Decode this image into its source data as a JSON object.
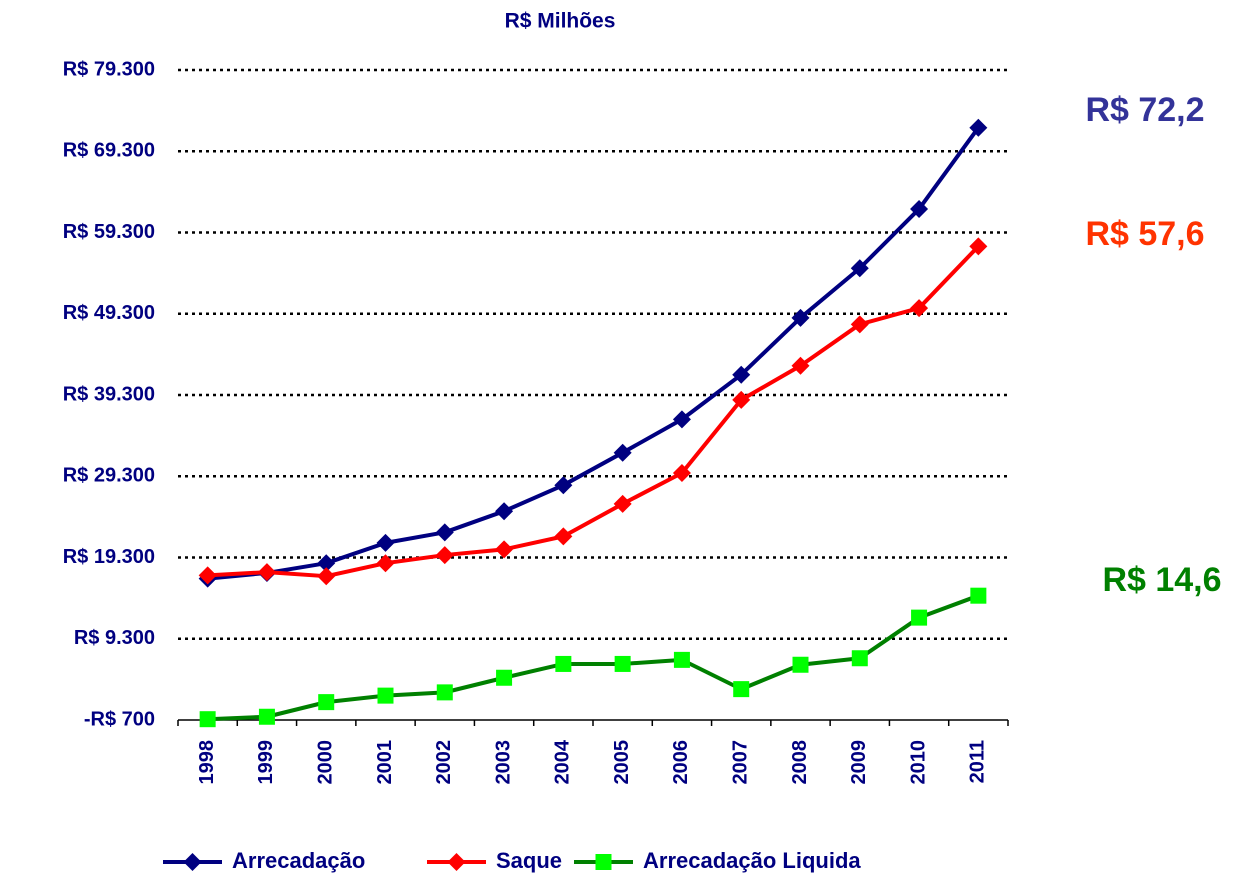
{
  "chart_data": {
    "type": "line",
    "title": "R$ Milhões",
    "categories": [
      "1998",
      "1999",
      "2000",
      "2001",
      "2002",
      "2003",
      "2004",
      "2005",
      "2006",
      "2007",
      "2008",
      "2009",
      "2010",
      "2011"
    ],
    "series": [
      {
        "name": "Arrecadação",
        "color": "#000080",
        "marker": "diamond",
        "marker_color": "#000080",
        "values": [
          16700,
          17400,
          18600,
          21100,
          22400,
          25000,
          28200,
          32200,
          36300,
          41800,
          48800,
          54900,
          62200,
          72200
        ]
      },
      {
        "name": "Saque",
        "color": "#ff0000",
        "marker": "diamond",
        "marker_color": "#ff0000",
        "values": [
          17100,
          17500,
          17000,
          18600,
          19600,
          20300,
          21900,
          25900,
          29700,
          38700,
          42900,
          48000,
          50000,
          57600
        ]
      },
      {
        "name": "Arrecadação Liquida",
        "color": "#008000",
        "marker": "square",
        "marker_color": "#00ff00",
        "values": [
          -600,
          -300,
          1500,
          2300,
          2700,
          4500,
          6200,
          6200,
          6700,
          3100,
          6100,
          6900,
          11900,
          14600
        ]
      }
    ],
    "ylim": [
      -700,
      79300
    ],
    "yticks": [
      {
        "value": -700,
        "label": "-R$ 700"
      },
      {
        "value": 9300,
        "label": "R$ 9.300"
      },
      {
        "value": 19300,
        "label": "R$ 19.300"
      },
      {
        "value": 29300,
        "label": "R$ 29.300"
      },
      {
        "value": 39300,
        "label": "R$ 39.300"
      },
      {
        "value": 49300,
        "label": "R$ 49.300"
      },
      {
        "value": 59300,
        "label": "R$ 59.300"
      },
      {
        "value": 69300,
        "label": "R$ 69.300"
      },
      {
        "value": 79300,
        "label": "R$ 79.300"
      }
    ],
    "grid": true,
    "legend": "bottom",
    "annotations": [
      {
        "text": "R$ 72,2",
        "color": "#333399"
      },
      {
        "text": "R$ 57,6",
        "color": "#ff3300"
      },
      {
        "text": "R$ 14,6",
        "color": "#008000"
      }
    ]
  }
}
